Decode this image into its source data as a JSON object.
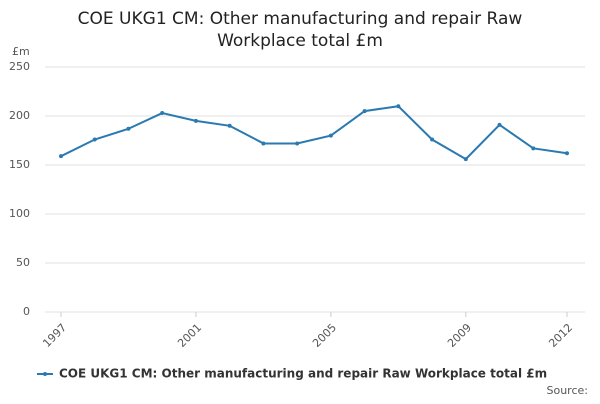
{
  "chart_data": {
    "type": "line",
    "title": "COE UKG1 CM: Other manufacturing and repair Raw Workplace total £m",
    "y_label": "£m",
    "source": "Source:",
    "x": [
      1997,
      1998,
      1999,
      2000,
      2001,
      2002,
      2003,
      2004,
      2005,
      2006,
      2007,
      2008,
      2009,
      2010,
      2011,
      2012
    ],
    "series": [
      {
        "name": "COE UKG1 CM: Other manufacturing and repair Raw Workplace total £m",
        "color": "#2a7ab0",
        "values": [
          159,
          176,
          187,
          203,
          195,
          190,
          172,
          172,
          180,
          205,
          210,
          176,
          156,
          191,
          167,
          162
        ]
      }
    ],
    "xlim": [
      1997,
      2012
    ],
    "xticks": [
      1997,
      2001,
      2005,
      2009,
      2012
    ],
    "ylim": [
      0,
      250
    ],
    "yticks": [
      0,
      50,
      100,
      150,
      200,
      250
    ],
    "grid": true
  }
}
